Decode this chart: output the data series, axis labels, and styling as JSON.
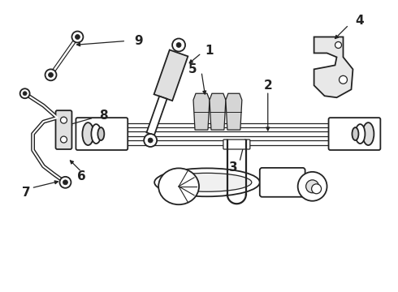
{
  "bg_color": "#ffffff",
  "line_color": "#222222",
  "label_color": "#000000",
  "figsize": [
    4.9,
    3.6
  ],
  "dpi": 100,
  "xlim": [
    0,
    490
  ],
  "ylim": [
    0,
    360
  ]
}
